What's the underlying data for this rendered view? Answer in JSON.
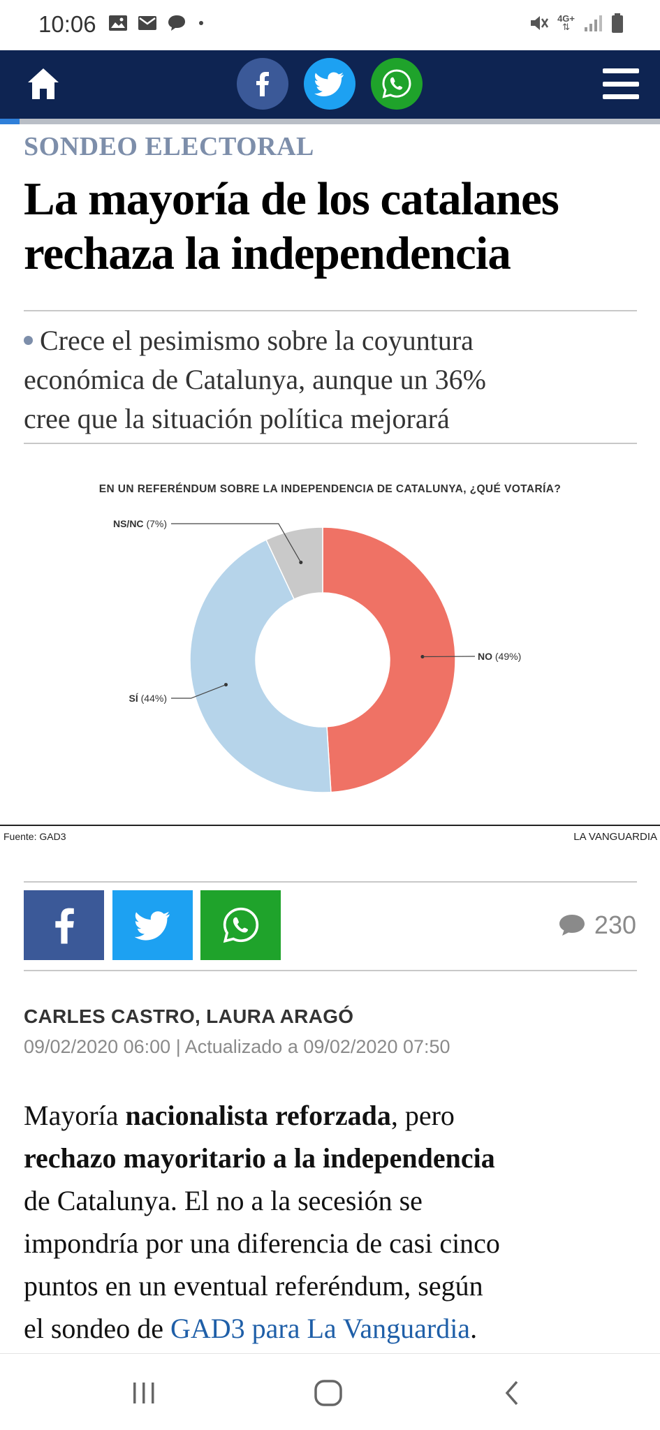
{
  "status_bar": {
    "time": "10:06",
    "notification_icons": [
      "image-icon",
      "mail-icon",
      "chat-bubble-icon",
      "dot-icon"
    ],
    "system_icons": [
      "mute-icon",
      "network-4g-icon",
      "signal-icon",
      "battery-icon"
    ],
    "network_label": "4G+"
  },
  "topnav": {
    "home_icon": "home-icon",
    "share_buttons": [
      {
        "name": "facebook",
        "icon": "facebook-icon",
        "color": "#3b5998"
      },
      {
        "name": "twitter",
        "icon": "twitter-icon",
        "color": "#1da1f2"
      },
      {
        "name": "whatsapp",
        "icon": "whatsapp-icon",
        "color": "#1fa32b"
      }
    ],
    "menu_icon": "hamburger-menu-icon",
    "background_color": "#0e2452",
    "read_progress": 0.03
  },
  "article": {
    "kicker": "SONDEO ELECTORAL",
    "headline_lines": [
      "La mayoría de los catalanes",
      "rechaza la independencia"
    ],
    "subhead_lines": [
      "Crece el pesimismo sobre la coyuntura",
      "económica de Catalunya, aunque un 36%",
      "cree que la situación política mejorará"
    ],
    "byline": "CARLES CASTRO, LAURA ARAGÓ",
    "dates": "09/02/2020 06:00 | Actualizado a 09/02/2020 07:50",
    "body": {
      "p1": "Mayoría ",
      "b1": "nacionalista reforzada",
      "p2": ", pero",
      "b2": "rechazo mayoritario a la independencia",
      "p3": "de Catalunya. El no a la secesión se",
      "p4": "impondría por una diferencia de casi cinco",
      "p5": "puntos en un eventual referéndum, según",
      "p6": "el sondeo de ",
      "link": "GAD3 para La Vanguardia",
      "p7": "."
    }
  },
  "chart_data": {
    "type": "pie",
    "style": "donut",
    "title": "EN UN REFERÉNDUM SOBRE LA INDEPENDENCIA DE CATALUNYA, ¿QUÉ VOTARÍA?",
    "slices": [
      {
        "name": "NO",
        "label": "(49%)",
        "value": 49,
        "color": "#ef7265"
      },
      {
        "name": "SÍ",
        "label": "(44%)",
        "value": 44,
        "color": "#b6d4ea"
      },
      {
        "name": "NS/NC",
        "label": "(7%)",
        "value": 7,
        "color": "#c9c9c9"
      }
    ],
    "source": "Fuente: GAD3",
    "brand": "LA VANGUARDIA"
  },
  "share_row": {
    "buttons": [
      {
        "name": "facebook",
        "icon": "facebook-icon",
        "color": "#3b5998"
      },
      {
        "name": "twitter",
        "icon": "twitter-icon",
        "color": "#1da1f2"
      },
      {
        "name": "whatsapp",
        "icon": "whatsapp-icon",
        "color": "#1fa32b"
      }
    ],
    "comment_count": "230"
  },
  "navbar": {
    "icons": [
      "recent-apps-icon",
      "home-circle-icon",
      "back-icon"
    ]
  }
}
